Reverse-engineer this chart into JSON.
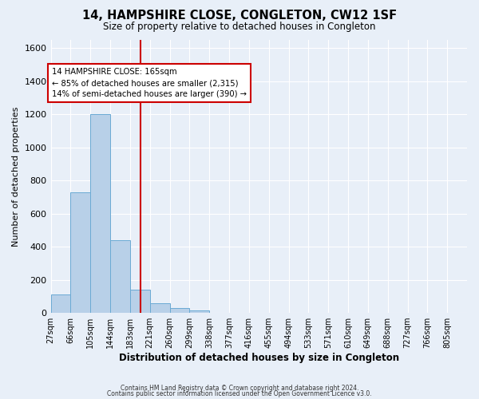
{
  "title": "14, HAMPSHIRE CLOSE, CONGLETON, CW12 1SF",
  "subtitle": "Size of property relative to detached houses in Congleton",
  "xlabel": "Distribution of detached houses by size in Congleton",
  "ylabel": "Number of detached properties",
  "bin_labels": [
    "27sqm",
    "66sqm",
    "105sqm",
    "144sqm",
    "183sqm",
    "221sqm",
    "260sqm",
    "299sqm",
    "338sqm",
    "377sqm",
    "416sqm",
    "455sqm",
    "494sqm",
    "533sqm",
    "571sqm",
    "610sqm",
    "649sqm",
    "688sqm",
    "727sqm",
    "766sqm",
    "805sqm"
  ],
  "bar_heights": [
    110,
    730,
    1200,
    440,
    140,
    60,
    30,
    15,
    0,
    0,
    0,
    0,
    0,
    0,
    0,
    0,
    0,
    0,
    0,
    0,
    0
  ],
  "bar_color": "#b8d0e8",
  "bar_edge_color": "#6aaad4",
  "bg_color": "#e8eff8",
  "grid_color": "#ffffff",
  "vline_bin": 4,
  "vline_color": "#cc0000",
  "annotation_text": "14 HAMPSHIRE CLOSE: 165sqm\n← 85% of detached houses are smaller (2,315)\n14% of semi-detached houses are larger (390) →",
  "annotation_box_color": "#ffffff",
  "annotation_box_edge": "#cc0000",
  "ylim": [
    0,
    1650
  ],
  "yticks": [
    0,
    200,
    400,
    600,
    800,
    1000,
    1200,
    1400,
    1600
  ],
  "footer_line1": "Contains HM Land Registry data © Crown copyright and database right 2024.",
  "footer_line2": "Contains public sector information licensed under the Open Government Licence v3.0."
}
